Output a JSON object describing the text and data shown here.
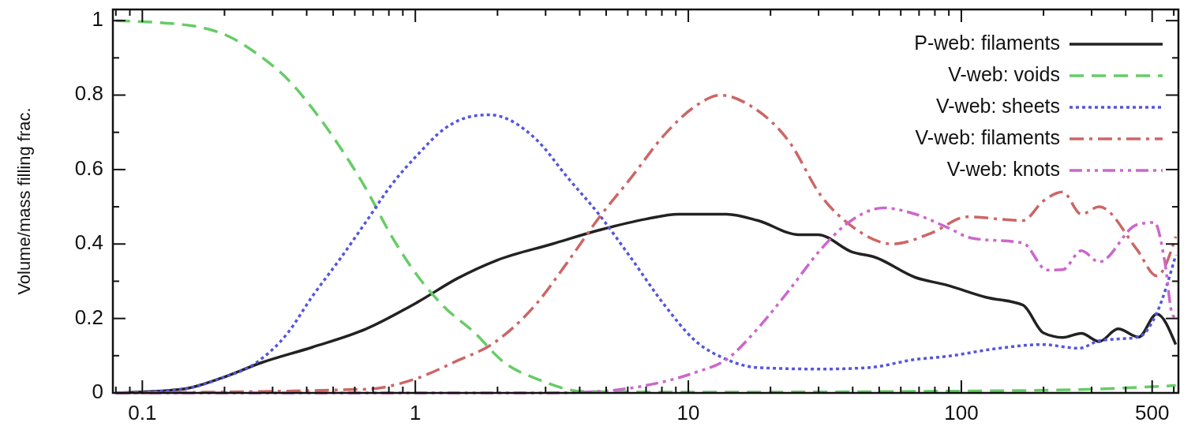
{
  "chart_data": {
    "type": "line",
    "ylabel": "Volume/mass filling frac.",
    "log": "x",
    "xlim": [
      0.078,
      624
    ],
    "xticks": [
      {
        "value": 0.08,
        "label": null
      },
      {
        "value": 0.09,
        "label": null
      },
      0.1,
      {
        "value": 0.2,
        "label": null
      },
      {
        "value": 0.3,
        "label": null
      },
      {
        "value": 0.4,
        "label": null
      },
      {
        "value": 0.5,
        "label": null
      },
      {
        "value": 0.6,
        "label": null
      },
      {
        "value": 0.7,
        "label": null
      },
      {
        "value": 0.8,
        "label": null
      },
      {
        "value": 0.9,
        "label": null
      },
      1,
      {
        "value": 2,
        "label": null
      },
      {
        "value": 3,
        "label": null
      },
      {
        "value": 4,
        "label": null
      },
      {
        "value": 5,
        "label": null
      },
      {
        "value": 6,
        "label": null
      },
      {
        "value": 7,
        "label": null
      },
      {
        "value": 8,
        "label": null
      },
      {
        "value": 9,
        "label": null
      },
      10,
      {
        "value": 20,
        "label": null
      },
      {
        "value": 30,
        "label": null
      },
      {
        "value": 40,
        "label": null
      },
      {
        "value": 50,
        "label": null
      },
      {
        "value": 60,
        "label": null
      },
      {
        "value": 70,
        "label": null
      },
      {
        "value": 80,
        "label": null
      },
      {
        "value": 90,
        "label": null
      },
      100,
      {
        "value": 200,
        "label": null
      },
      {
        "value": 300,
        "label": null
      },
      {
        "value": 400,
        "label": null
      },
      500,
      {
        "value": 600,
        "label": null
      }
    ],
    "ylim": [
      0,
      1.03
    ],
    "yticks": [
      0,
      {
        "value": 0.1,
        "label": null
      },
      0.2,
      {
        "value": 0.3,
        "label": null
      },
      0.4,
      {
        "value": 0.5,
        "label": null
      },
      0.6,
      {
        "value": 0.7,
        "label": null
      },
      0.8,
      {
        "value": 0.9,
        "label": null
      },
      1
    ],
    "grid": false,
    "legend": "top right",
    "series": [
      {
        "name": "P-web: filaments",
        "color": "#222222",
        "line_style": "solid",
        "x": [
          0.08,
          0.14,
          0.195,
          0.27,
          0.42,
          0.66,
          1.02,
          1.43,
          2.0,
          3.17,
          4.7,
          7.0,
          9.2,
          13.8,
          18,
          25.4,
          29.8,
          40,
          48,
          68,
          88,
          123,
          168,
          200,
          235,
          275,
          320,
          375,
          446,
          520,
          610
        ],
        "values": [
          0.0,
          0.01,
          0.04,
          0.08,
          0.123,
          0.172,
          0.244,
          0.308,
          0.357,
          0.4,
          0.437,
          0.467,
          0.48,
          0.48,
          0.463,
          0.425,
          0.425,
          0.378,
          0.365,
          0.31,
          0.29,
          0.257,
          0.236,
          0.161,
          0.149,
          0.16,
          0.138,
          0.172,
          0.15,
          0.212,
          0.13
        ]
      },
      {
        "name": "V-web: voids",
        "color": "#66cc66",
        "line_style": "dashed",
        "x": [
          0.08,
          0.149,
          0.204,
          0.27,
          0.338,
          0.424,
          0.53,
          0.66,
          0.82,
          1.02,
          1.28,
          1.63,
          2.13,
          2.78,
          4.15,
          10,
          100,
          300,
          610
        ],
        "values": [
          1.0,
          0.987,
          0.96,
          0.905,
          0.845,
          0.76,
          0.66,
          0.548,
          0.42,
          0.314,
          0.23,
          0.165,
          0.08,
          0.038,
          0.004,
          0.002,
          0.005,
          0.01,
          0.02
        ]
      },
      {
        "name": "V-web: sheets",
        "color": "#5555dd",
        "line_style": "dotted",
        "x": [
          0.08,
          0.14,
          0.195,
          0.26,
          0.34,
          0.42,
          0.53,
          0.66,
          0.82,
          1.02,
          1.28,
          1.67,
          1.87,
          2.78,
          3.6,
          4.7,
          6.2,
          8.1,
          10.6,
          13.8,
          18,
          30.6,
          45.7,
          68,
          88,
          137,
          197,
          270,
          320,
          446,
          520,
          610
        ],
        "values": [
          0.0,
          0.01,
          0.04,
          0.08,
          0.16,
          0.26,
          0.36,
          0.46,
          0.56,
          0.64,
          0.71,
          0.745,
          0.747,
          0.68,
          0.58,
          0.48,
          0.36,
          0.24,
          0.14,
          0.09,
          0.068,
          0.064,
          0.068,
          0.09,
          0.098,
          0.12,
          0.13,
          0.12,
          0.14,
          0.15,
          0.215,
          0.37
        ]
      },
      {
        "name": "V-web: filaments",
        "color": "#cc6666",
        "line_style": "dashdot",
        "x": [
          0.08,
          0.66,
          1.02,
          1.43,
          1.9,
          2.78,
          3.6,
          4.7,
          6.2,
          8.1,
          10.6,
          13.1,
          17,
          23.4,
          30.6,
          40,
          56,
          78,
          105,
          168,
          200,
          235,
          275,
          320,
          440,
          520,
          610
        ],
        "values": [
          0.0,
          0.01,
          0.04,
          0.087,
          0.13,
          0.24,
          0.35,
          0.47,
          0.58,
          0.69,
          0.77,
          0.8,
          0.77,
          0.675,
          0.53,
          0.446,
          0.4,
          0.43,
          0.473,
          0.463,
          0.516,
          0.54,
          0.48,
          0.5,
          0.385,
          0.314,
          0.42
        ]
      },
      {
        "name": "V-web: knots",
        "color": "#cc66cc",
        "line_style": "dashdotdot",
        "x": [
          0.08,
          3.0,
          4.7,
          7.0,
          10.6,
          13.8,
          18,
          23.4,
          30.6,
          38,
          52,
          68,
          88,
          109,
          168,
          206,
          235,
          275,
          320,
          440,
          510,
          555,
          595,
          624
        ],
        "values": [
          0.0,
          0.0,
          0.004,
          0.02,
          0.055,
          0.09,
          0.174,
          0.276,
          0.386,
          0.454,
          0.497,
          0.48,
          0.446,
          0.416,
          0.403,
          0.33,
          0.331,
          0.382,
          0.352,
          0.452,
          0.458,
          0.357,
          0.208,
          0.2
        ]
      }
    ]
  }
}
